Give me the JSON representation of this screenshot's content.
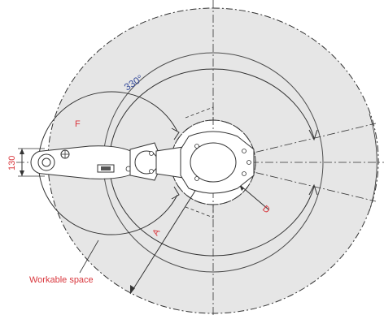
{
  "labels": {
    "rotation_angle": "330°",
    "dim_f": "F",
    "dim_a": "A",
    "dim_d": "D",
    "dim_130": "130",
    "workable_space": "Workable space"
  },
  "colors": {
    "workspace_fill": "#e6e6e6",
    "outline": "#333333",
    "dim_red": "#d9373d",
    "dim_blue": "#3a4f9c"
  }
}
